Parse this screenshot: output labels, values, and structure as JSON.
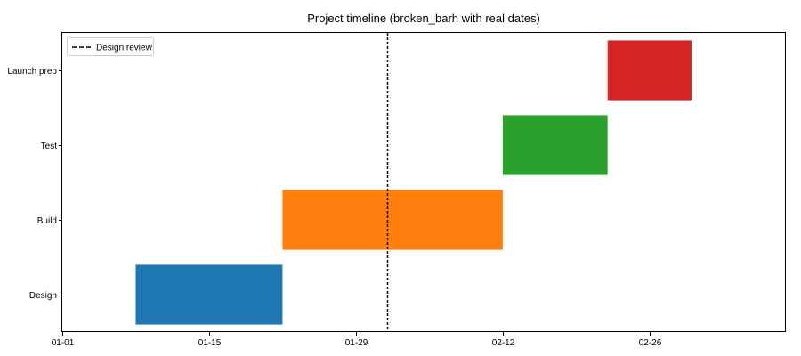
{
  "chart_data": {
    "type": "gantt",
    "title": "Project timeline (broken_barh with real dates)",
    "xlabel": "",
    "ylabel": "",
    "x_axis": {
      "type": "date",
      "range": [
        "2024-01-01",
        "2024-03-10"
      ],
      "ticks": [
        "2024-01-01",
        "2024-01-15",
        "2024-01-29",
        "2024-02-12",
        "2024-02-26"
      ],
      "tick_labels": [
        "01-01",
        "01-15",
        "01-29",
        "02-12",
        "02-26"
      ]
    },
    "categories": [
      "Design",
      "Build",
      "Test",
      "Launch prep"
    ],
    "tasks": [
      {
        "name": "Design",
        "start": "2024-01-08",
        "end": "2024-01-22",
        "color": "#1f77b4"
      },
      {
        "name": "Build",
        "start": "2024-01-22",
        "end": "2024-02-12",
        "color": "#ff7f0e"
      },
      {
        "name": "Test",
        "start": "2024-02-12",
        "end": "2024-02-22",
        "color": "#2ca02c"
      },
      {
        "name": "Launch prep",
        "start": "2024-02-22",
        "end": "2024-03-01",
        "color": "#d62728"
      }
    ],
    "reference_lines": [
      {
        "name": "Design review",
        "date": "2024-02-01",
        "style": "dashed",
        "color": "#000000"
      }
    ],
    "legend": {
      "position": "top-left",
      "entries": [
        "Design review"
      ]
    },
    "grid": false
  }
}
